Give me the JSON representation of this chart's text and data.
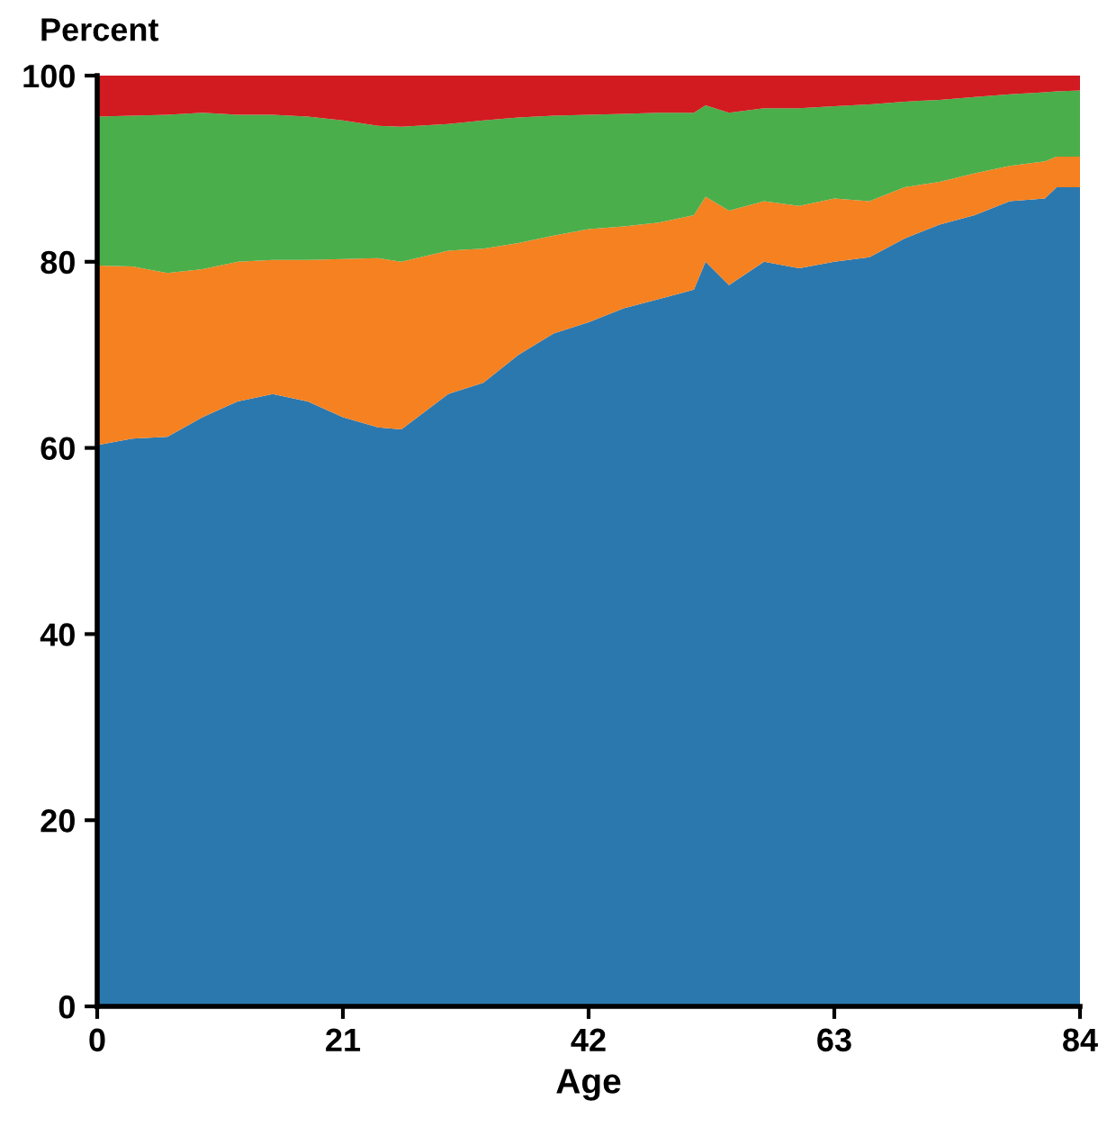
{
  "chart_data": {
    "type": "area",
    "stacked": true,
    "xlabel": "Age",
    "ylabel": "Percent",
    "x": [
      0,
      3,
      6,
      9,
      12,
      15,
      18,
      21,
      24,
      26,
      30,
      33,
      36,
      39,
      42,
      45,
      48,
      51,
      52,
      54,
      57,
      60,
      63,
      66,
      69,
      72,
      75,
      78,
      81,
      82,
      84
    ],
    "xlim": [
      0,
      84
    ],
    "xticks": [
      0,
      21,
      42,
      63,
      84
    ],
    "ylim": [
      0,
      100
    ],
    "yticks": [
      0,
      20,
      40,
      60,
      80,
      100
    ],
    "grid": false,
    "legend": false,
    "series": [
      {
        "color": "#2b78af",
        "values": [
          60.3,
          61,
          61.2,
          63.3,
          65,
          65.8,
          65,
          63.3,
          62.2,
          62,
          65.8,
          67,
          70,
          72.3,
          73.5,
          75,
          76,
          77,
          80,
          77.5,
          80,
          79.3,
          80,
          80.5,
          82.5,
          84,
          85,
          86.5,
          86.8,
          88,
          88
        ]
      },
      {
        "color": "#f58120",
        "values": [
          19.3,
          18.5,
          17.6,
          15.9,
          15,
          14.4,
          15.2,
          17,
          18.2,
          18,
          15.4,
          14.4,
          12,
          10.5,
          10,
          8.8,
          8.2,
          8,
          7,
          8,
          6.5,
          6.7,
          6.8,
          6,
          5.5,
          4.6,
          4.5,
          3.8,
          4,
          3.3,
          3.3
        ]
      },
      {
        "color": "#4aae4a",
        "values": [
          16,
          16.2,
          17,
          16.8,
          15.8,
          15.6,
          15.4,
          14.9,
          14.2,
          14.5,
          13.6,
          13.8,
          13.5,
          12.9,
          12.3,
          12.1,
          11.8,
          11,
          9.8,
          10.5,
          10,
          10.5,
          9.9,
          10.4,
          9.2,
          8.8,
          8.2,
          7.7,
          7.4,
          7,
          7.1
        ]
      },
      {
        "color": "#d21a21",
        "values": [
          4.4,
          4.3,
          4.2,
          4,
          4.2,
          4.2,
          4.4,
          4.8,
          5.4,
          5.5,
          5.2,
          4.8,
          4.5,
          4.3,
          4.2,
          4.1,
          4,
          4,
          3.2,
          4,
          3.5,
          3.5,
          3.3,
          3.1,
          2.8,
          2.6,
          2.3,
          2,
          1.8,
          1.7,
          1.6
        ]
      }
    ]
  }
}
